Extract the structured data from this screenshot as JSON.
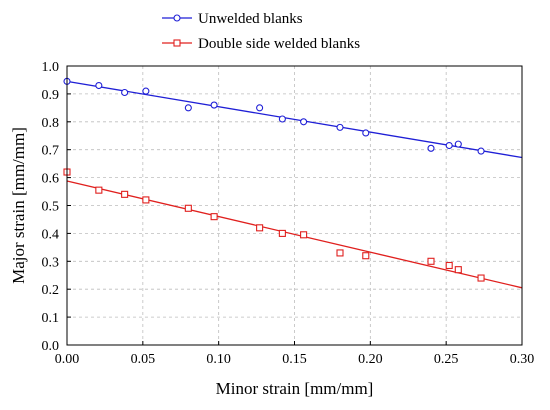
{
  "chart_data": {
    "type": "scatter",
    "title": "",
    "xlabel": "Minor strain [mm/mm]",
    "ylabel": "Major strain [mm/mm]",
    "xlim": [
      0,
      0.3
    ],
    "ylim": [
      0,
      1.0
    ],
    "xticks": [
      0.0,
      0.05,
      0.1,
      0.15,
      0.2,
      0.25,
      0.3
    ],
    "yticks": [
      0.0,
      0.1,
      0.2,
      0.3,
      0.4,
      0.5,
      0.6,
      0.7,
      0.8,
      0.9,
      1.0
    ],
    "xtick_labels": [
      "0.00",
      "0.05",
      "0.10",
      "0.15",
      "0.20",
      "0.25",
      "0.30"
    ],
    "ytick_labels": [
      "0.0",
      "0.1",
      "0.2",
      "0.3",
      "0.4",
      "0.5",
      "0.6",
      "0.7",
      "0.8",
      "0.9",
      "1.0"
    ],
    "grid": true,
    "legend_position": "top-left, above plot",
    "series": [
      {
        "name": "Unwelded blanks",
        "color": "#1f1fd6",
        "marker": "circle",
        "x": [
          0.0,
          0.021,
          0.038,
          0.052,
          0.08,
          0.097,
          0.127,
          0.142,
          0.156,
          0.18,
          0.197,
          0.24,
          0.252,
          0.258,
          0.273
        ],
        "y": [
          0.945,
          0.93,
          0.905,
          0.91,
          0.85,
          0.86,
          0.85,
          0.81,
          0.8,
          0.78,
          0.76,
          0.705,
          0.715,
          0.72,
          0.695
        ],
        "fit": {
          "x": [
            0.0,
            0.3
          ],
          "y": [
            0.945,
            0.672
          ]
        }
      },
      {
        "name": "Double side welded blanks",
        "color": "#e0201e",
        "marker": "square",
        "x": [
          0.0,
          0.021,
          0.038,
          0.052,
          0.08,
          0.097,
          0.127,
          0.142,
          0.156,
          0.18,
          0.197,
          0.24,
          0.252,
          0.258,
          0.273
        ],
        "y": [
          0.62,
          0.555,
          0.54,
          0.52,
          0.49,
          0.46,
          0.42,
          0.4,
          0.395,
          0.33,
          0.32,
          0.3,
          0.285,
          0.27,
          0.24
        ],
        "fit": {
          "x": [
            0.0,
            0.3
          ],
          "y": [
            0.588,
            0.205
          ]
        }
      }
    ]
  }
}
